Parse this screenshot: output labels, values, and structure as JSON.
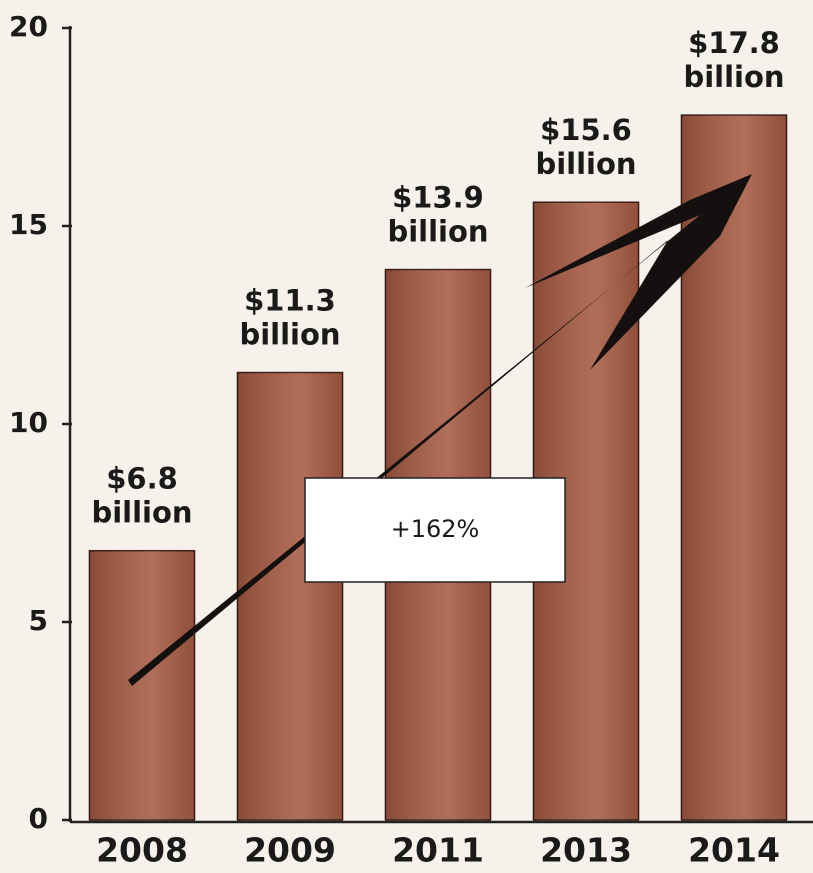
{
  "chart_data": {
    "type": "bar",
    "categories": [
      "2008",
      "2009",
      "2011",
      "2013",
      "2014"
    ],
    "values": [
      6.8,
      11.3,
      13.9,
      15.6,
      17.8
    ],
    "value_labels": [
      "$6.8 billion",
      "$11.3 billion",
      "$13.9 billion",
      "$15.6 billion",
      "$17.8 billion"
    ],
    "color": "#a65a42",
    "ylim": [
      0,
      20
    ],
    "yticks": [
      0,
      5,
      10,
      15,
      20
    ],
    "annotation": "+162%"
  }
}
